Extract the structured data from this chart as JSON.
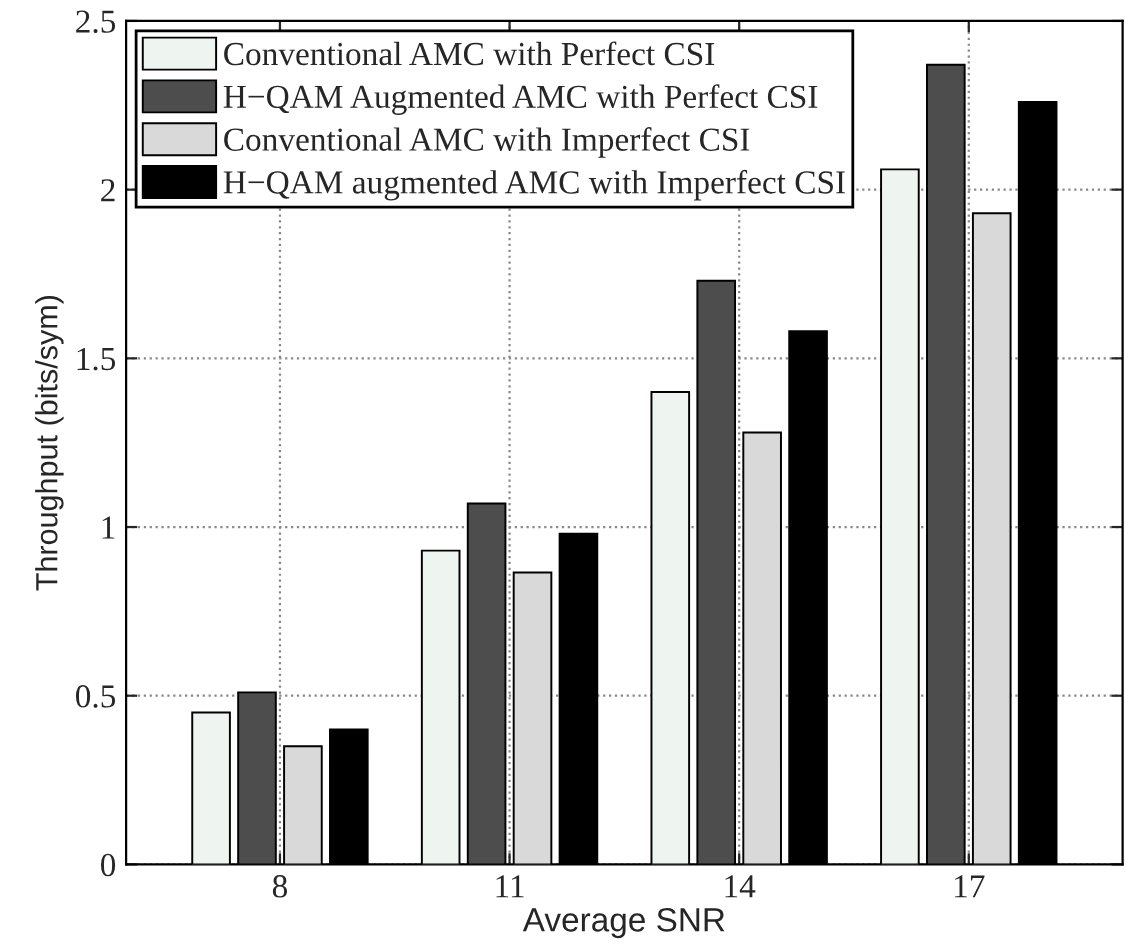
{
  "chart_data": {
    "type": "bar",
    "xlabel": "Average SNR",
    "ylabel": "Throughput (bits/sym)",
    "categories": [
      "8",
      "11",
      "14",
      "17"
    ],
    "series": [
      {
        "name": "Conventional AMC with Perfect CSI",
        "color": "#eef4ef",
        "values": [
          0.45,
          0.93,
          1.4,
          2.06
        ]
      },
      {
        "name": "H−QAM Augmented AMC with Perfect CSI",
        "color": "#4d4d4d",
        "values": [
          0.51,
          1.07,
          1.73,
          2.37
        ]
      },
      {
        "name": "Conventional AMC with Imperfect CSI",
        "color": "#d9d9d9",
        "values": [
          0.35,
          0.865,
          1.28,
          1.93
        ]
      },
      {
        "name": "H−QAM augmented AMC with Imperfect CSI",
        "color": "#000000",
        "values": [
          0.4,
          0.98,
          1.58,
          2.26
        ]
      }
    ],
    "ylim": [
      0,
      2.5
    ],
    "yticks": [
      0,
      0.5,
      1,
      1.5,
      2,
      2.5
    ],
    "grid": true,
    "legend": "top left"
  }
}
